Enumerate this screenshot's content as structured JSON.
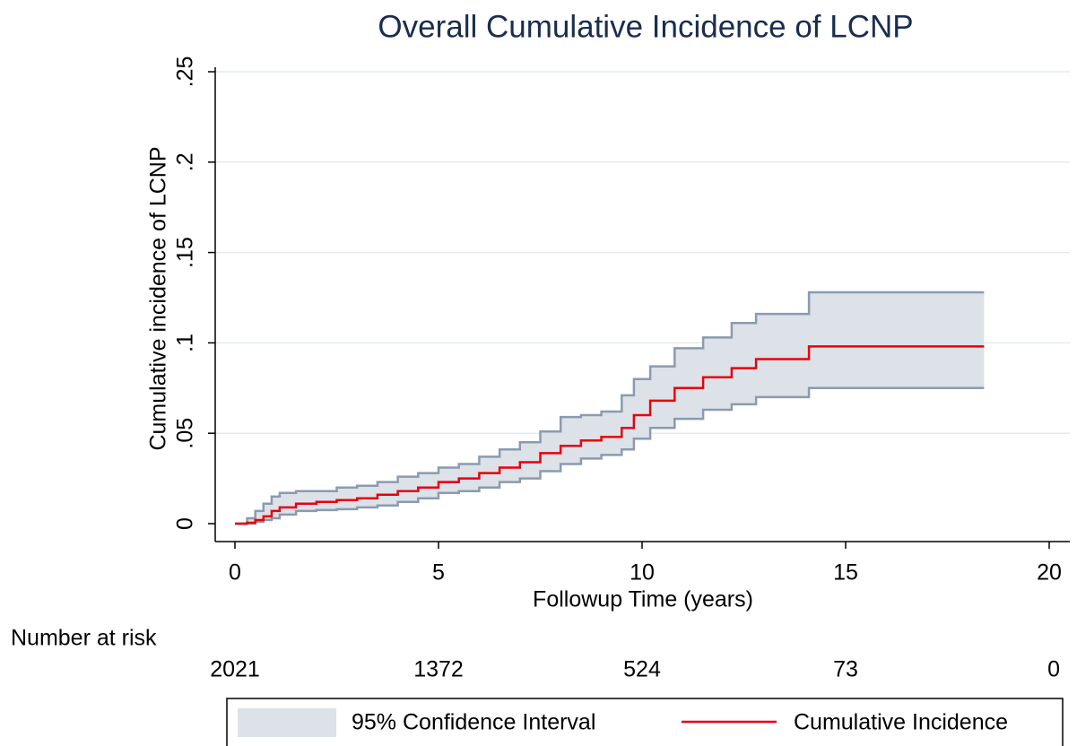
{
  "chart_data": {
    "type": "step",
    "title": "Overall Cumulative Incidence of LCNP",
    "x_label": "Followup Time (years)",
    "y_label": "Cumulative incidence of LCNP",
    "x": [
      0,
      0.3,
      0.5,
      0.7,
      0.9,
      1.1,
      1.5,
      2,
      2.5,
      3,
      3.5,
      4,
      4.5,
      5,
      5.5,
      6,
      6.5,
      7,
      7.5,
      8,
      8.5,
      9,
      9.5,
      9.8,
      10.2,
      10.8,
      11.5,
      12.2,
      12.8,
      14.1,
      18.4
    ],
    "series": [
      {
        "name": "Cumulative Incidence",
        "color": "#e8000b",
        "values": [
          0,
          0.0005,
          0.002,
          0.004,
          0.007,
          0.009,
          0.011,
          0.012,
          0.013,
          0.014,
          0.016,
          0.018,
          0.02,
          0.023,
          0.025,
          0.028,
          0.031,
          0.034,
          0.039,
          0.043,
          0.046,
          0.048,
          0.053,
          0.06,
          0.068,
          0.075,
          0.081,
          0.086,
          0.091,
          0.098,
          0.098
        ]
      }
    ],
    "confidence_band": {
      "name": "95% Confidence Interval",
      "color": "#dde1e8",
      "edge_color": "#8a9bb0",
      "lower": [
        0,
        0,
        0.001,
        0.002,
        0.003,
        0.005,
        0.007,
        0.0075,
        0.008,
        0.009,
        0.01,
        0.012,
        0.014,
        0.017,
        0.018,
        0.02,
        0.023,
        0.025,
        0.029,
        0.033,
        0.036,
        0.038,
        0.041,
        0.047,
        0.053,
        0.058,
        0.063,
        0.066,
        0.07,
        0.075,
        0.075
      ],
      "upper": [
        0,
        0.003,
        0.007,
        0.011,
        0.015,
        0.017,
        0.018,
        0.018,
        0.02,
        0.021,
        0.023,
        0.026,
        0.028,
        0.031,
        0.033,
        0.037,
        0.041,
        0.045,
        0.051,
        0.059,
        0.06,
        0.062,
        0.071,
        0.08,
        0.087,
        0.097,
        0.103,
        0.111,
        0.116,
        0.128,
        0.128
      ]
    },
    "xlim": [
      0,
      20
    ],
    "xticks": [
      0,
      5,
      10,
      15,
      20
    ],
    "ylim": [
      0,
      0.25
    ],
    "yticks": [
      0,
      {
        "value": 0.05,
        "label": ".05"
      },
      {
        "value": 0.1,
        "label": ".1"
      },
      {
        "value": 0.15,
        "label": ".15"
      },
      {
        "value": 0.2,
        "label": ".2"
      },
      {
        "value": 0.25,
        "label": ".25"
      }
    ],
    "grid": true,
    "risk_table": {
      "label": "Number at risk",
      "counts": [
        2021,
        1372,
        524,
        73,
        0
      ]
    }
  }
}
